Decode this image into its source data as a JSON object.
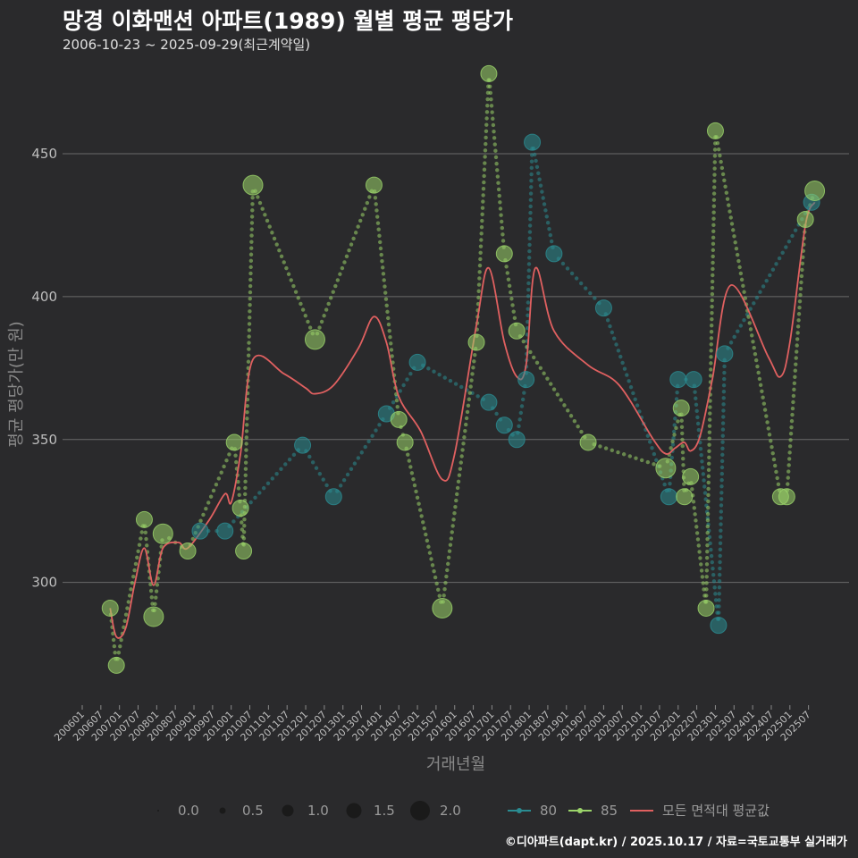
{
  "title": "망경 이화맨션 아파트(1989) 월별 평균 평당가",
  "subtitle": "2006-10-23 ~ 2025-09-29(최근계약일)",
  "footer": "©디아파트(dapt.kr) / 2025.10.17 / 자료=국토교통부 실거래가",
  "chart_data": {
    "type": "line",
    "title": "망경 이화맨션 아파트(1989) 월별 평균 평당가",
    "xlabel": "거래년월",
    "ylabel": "평균 평당가(만 원)",
    "ylim": [
      258,
      485
    ],
    "yticks": [
      300,
      350,
      400,
      450
    ],
    "x_range": [
      "2006-01",
      "2025-12"
    ],
    "x_ticks": [
      "200601",
      "200607",
      "200701",
      "200707",
      "200801",
      "200807",
      "200901",
      "200907",
      "201001",
      "201007",
      "201101",
      "201107",
      "201201",
      "201207",
      "201301",
      "201307",
      "201401",
      "201407",
      "201501",
      "201507",
      "201601",
      "201607",
      "201701",
      "201707",
      "201801",
      "201807",
      "201901",
      "201907",
      "202001",
      "202007",
      "202101",
      "202107",
      "202201",
      "202207",
      "202301",
      "202307",
      "202401",
      "202407",
      "202501",
      "202507"
    ],
    "size_legend": {
      "title": "",
      "values": [
        "0.0",
        "0.5",
        "1.0",
        "1.5",
        "2.0"
      ]
    },
    "color_legend": [
      {
        "name": "80",
        "color": "#2a8c92"
      },
      {
        "name": "85",
        "color": "#9bd46a"
      },
      {
        "name": "모든 면적대 평균값",
        "color": "#e06060"
      }
    ],
    "series": [
      {
        "name": "80",
        "color": "#2a8c92",
        "points": [
          [
            "2009-03",
            318,
            1
          ],
          [
            "2009-11",
            318,
            1
          ],
          [
            "2011-12",
            348,
            1
          ],
          [
            "2012-10",
            330,
            1
          ],
          [
            "2014-03",
            359,
            1
          ],
          [
            "2015-01",
            377,
            1
          ],
          [
            "2016-12",
            363,
            1
          ],
          [
            "2017-05",
            355,
            1
          ],
          [
            "2017-09",
            350,
            1
          ],
          [
            "2017-12",
            371,
            1
          ],
          [
            "2018-02",
            454,
            1
          ],
          [
            "2018-09",
            415,
            1
          ],
          [
            "2020-01",
            396,
            1
          ],
          [
            "2021-10",
            330,
            1
          ],
          [
            "2022-01",
            371,
            1
          ],
          [
            "2022-06",
            371,
            1
          ],
          [
            "2023-02",
            285,
            1
          ],
          [
            "2023-04",
            380,
            1
          ],
          [
            "2025-08",
            433,
            1
          ]
        ]
      },
      {
        "name": "85",
        "color": "#9bd46a",
        "points": [
          [
            "2006-10",
            291,
            1
          ],
          [
            "2006-12",
            271,
            1
          ],
          [
            "2007-09",
            322,
            1
          ],
          [
            "2007-12",
            288,
            1.5
          ],
          [
            "2008-03",
            317,
            1.5
          ],
          [
            "2008-11",
            311,
            1
          ],
          [
            "2010-02",
            349,
            1
          ],
          [
            "2010-04",
            326,
            1
          ],
          [
            "2010-05",
            311,
            1
          ],
          [
            "2010-08",
            439,
            1.5
          ],
          [
            "2012-04",
            385,
            1.5
          ],
          [
            "2013-11",
            439,
            1
          ],
          [
            "2014-07",
            357,
            1
          ],
          [
            "2014-09",
            349,
            1
          ],
          [
            "2015-09",
            291,
            1.5
          ],
          [
            "2016-08",
            384,
            1
          ],
          [
            "2016-12",
            478,
            1
          ],
          [
            "2017-05",
            415,
            1
          ],
          [
            "2017-09",
            388,
            1
          ],
          [
            "2019-08",
            349,
            1
          ],
          [
            "2021-09",
            340,
            1.5
          ],
          [
            "2022-02",
            361,
            1
          ],
          [
            "2022-03",
            330,
            1
          ],
          [
            "2022-05",
            337,
            1
          ],
          [
            "2022-10",
            291,
            1
          ],
          [
            "2023-01",
            458,
            1
          ],
          [
            "2024-10",
            330,
            1
          ],
          [
            "2024-12",
            330,
            1
          ],
          [
            "2025-06",
            427,
            1
          ],
          [
            "2025-09",
            437,
            1.5
          ]
        ]
      },
      {
        "name": "모든 면적대 평균값",
        "color": "#e06060",
        "points": [
          [
            "2006-10",
            291
          ],
          [
            "2006-12",
            281
          ],
          [
            "2007-03",
            284
          ],
          [
            "2007-06",
            300
          ],
          [
            "2007-09",
            312
          ],
          [
            "2007-12",
            299
          ],
          [
            "2008-03",
            312
          ],
          [
            "2008-08",
            314
          ],
          [
            "2008-11",
            312
          ],
          [
            "2009-06",
            322
          ],
          [
            "2009-11",
            331
          ],
          [
            "2010-01",
            328
          ],
          [
            "2010-04",
            345
          ],
          [
            "2010-08",
            378
          ],
          [
            "2011-06",
            373
          ],
          [
            "2012-01",
            368
          ],
          [
            "2012-04",
            366
          ],
          [
            "2012-10",
            369
          ],
          [
            "2013-06",
            382
          ],
          [
            "2013-11",
            393
          ],
          [
            "2014-03",
            384
          ],
          [
            "2014-07",
            365
          ],
          [
            "2015-02",
            353
          ],
          [
            "2015-09",
            336
          ],
          [
            "2016-01",
            345
          ],
          [
            "2016-08",
            390
          ],
          [
            "2016-12",
            410
          ],
          [
            "2017-05",
            384
          ],
          [
            "2017-09",
            372
          ],
          [
            "2017-12",
            376
          ],
          [
            "2018-03",
            410
          ],
          [
            "2018-09",
            388
          ],
          [
            "2019-08",
            376
          ],
          [
            "2020-06",
            369
          ],
          [
            "2021-05",
            350
          ],
          [
            "2021-09",
            345
          ],
          [
            "2021-12",
            347
          ],
          [
            "2022-03",
            349
          ],
          [
            "2022-05",
            346
          ],
          [
            "2022-08",
            351
          ],
          [
            "2022-12",
            371
          ],
          [
            "2023-06",
            404
          ],
          [
            "2024-06",
            379
          ],
          [
            "2024-10",
            372
          ],
          [
            "2025-01",
            384
          ],
          [
            "2025-06",
            425
          ],
          [
            "2025-09",
            433
          ]
        ]
      }
    ]
  }
}
